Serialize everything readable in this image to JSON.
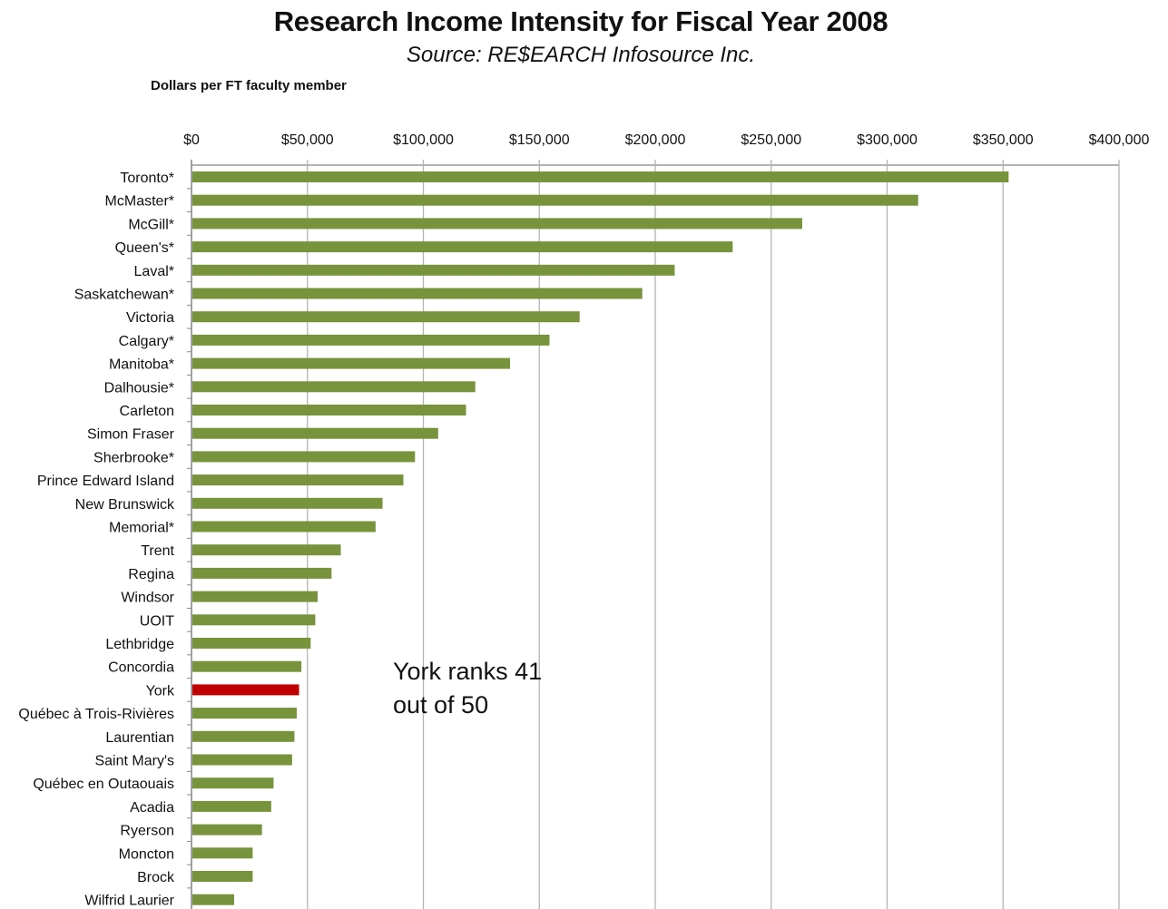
{
  "chart_data": {
    "type": "bar",
    "orientation": "horizontal",
    "title": "Research Income Intensity for Fiscal Year 2008",
    "subtitle": "Source: RE$EARCH Infosource Inc.",
    "units_label": "Dollars per FT faculty member",
    "xlim": [
      0,
      400000
    ],
    "x_ticks": [
      "$0",
      "$50,000",
      "$100,000",
      "$150,000",
      "$200,000",
      "$250,000",
      "$300,000",
      "$350,000",
      "$400,000"
    ],
    "grid": true,
    "legend": "none",
    "colors": {
      "default": "#77933c",
      "highlight": "#c00000"
    },
    "highlight_category": "York",
    "categories": [
      "Toronto*",
      "McMaster*",
      "McGill*",
      "Queen's*",
      "Laval*",
      "Saskatchewan*",
      "Victoria",
      "Calgary*",
      "Manitoba*",
      "Dalhousie*",
      "Carleton",
      "Simon Fraser",
      "Sherbrooke*",
      "Prince Edward Island",
      "New Brunswick",
      "Memorial*",
      "Trent",
      "Regina",
      "Windsor",
      "UOIT",
      "Lethbridge",
      "Concordia",
      "York",
      "Québec à Trois-Rivières",
      "Laurentian",
      "Saint Mary's",
      "Québec en Outaouais",
      "Acadia",
      "Ryerson",
      "Moncton",
      "Brock",
      "Wilfrid Laurier"
    ],
    "values": [
      352000,
      313000,
      263000,
      233000,
      208000,
      194000,
      167000,
      154000,
      137000,
      122000,
      118000,
      106000,
      96000,
      91000,
      82000,
      79000,
      64000,
      60000,
      54000,
      53000,
      51000,
      47000,
      46000,
      45000,
      44000,
      43000,
      35000,
      34000,
      30000,
      26000,
      26000,
      18000
    ],
    "annotation": [
      "York ranks 41",
      "out of 50"
    ]
  }
}
